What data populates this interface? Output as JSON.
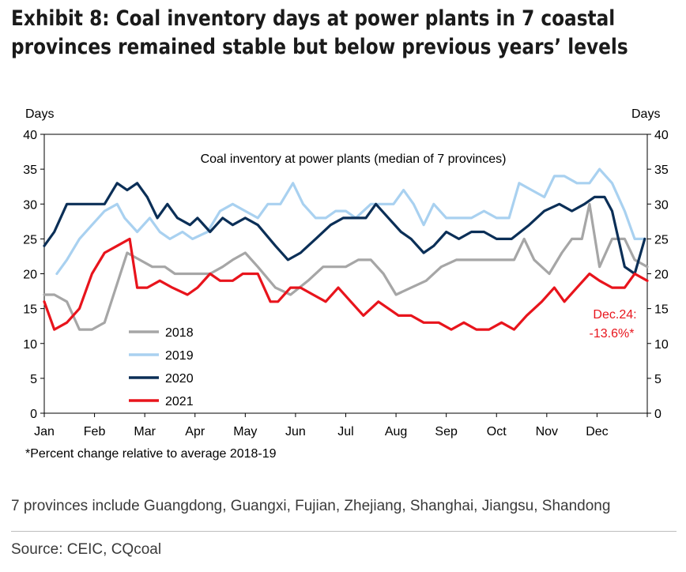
{
  "title": {
    "line1": "Exhibit 8: Coal inventory days at power plants in 7 coastal",
    "line2": "provinces remained stable but below previous years’ levels"
  },
  "chart_data": {
    "type": "line",
    "inner_title": "Coal inventory at power plants (median of 7 provinces)",
    "ylabel_left": "Days",
    "ylabel_right": "Days",
    "ylim": [
      0,
      40
    ],
    "yticks": [
      0,
      5,
      10,
      15,
      20,
      25,
      30,
      35,
      40
    ],
    "x_range": [
      0,
      12
    ],
    "months": [
      "Jan",
      "Feb",
      "Mar",
      "Apr",
      "May",
      "Jun",
      "Jul",
      "Aug",
      "Sep",
      "Oct",
      "Nov",
      "Dec"
    ],
    "footnote": "*Percent change relative to average 2018-19",
    "annotation": {
      "line1": "Dec.24:",
      "line2": "-13.6%*",
      "color": "#e8141c"
    },
    "series": [
      {
        "name": "2018",
        "color": "#a6a6a6",
        "x": [
          0,
          0.2,
          0.45,
          0.7,
          0.95,
          1.2,
          1.65,
          1.9,
          2.15,
          2.4,
          2.6,
          2.9,
          3.3,
          3.55,
          3.75,
          4.0,
          4.25,
          4.6,
          4.9,
          5.25,
          5.55,
          5.8,
          6.0,
          6.25,
          6.5,
          6.75,
          7.0,
          7.3,
          7.6,
          7.9,
          8.2,
          8.55,
          8.9,
          9.35,
          9.55,
          9.75,
          10.05,
          10.3,
          10.5,
          10.7,
          10.85,
          11.05,
          11.3,
          11.55,
          11.75,
          12.0
        ],
        "values": [
          17,
          17,
          16,
          12,
          12,
          13,
          23,
          22,
          21,
          21,
          20,
          20,
          20,
          21,
          22,
          23,
          21,
          18,
          17,
          19,
          21,
          21,
          21,
          22,
          22,
          20,
          17,
          18,
          19,
          21,
          22,
          22,
          22,
          22,
          25,
          22,
          20,
          23,
          25,
          25,
          30,
          21,
          25,
          25,
          22,
          21
        ]
      },
      {
        "name": "2019",
        "color": "#a9d1f0",
        "x": [
          0.25,
          0.45,
          0.7,
          0.95,
          1.2,
          1.45,
          1.6,
          1.85,
          2.1,
          2.3,
          2.5,
          2.75,
          2.95,
          3.25,
          3.5,
          3.75,
          4.0,
          4.25,
          4.45,
          4.7,
          4.95,
          5.15,
          5.4,
          5.6,
          5.8,
          6.0,
          6.2,
          6.5,
          6.75,
          6.95,
          7.15,
          7.35,
          7.55,
          7.75,
          8.0,
          8.2,
          8.5,
          8.75,
          9.0,
          9.25,
          9.45,
          9.7,
          9.95,
          10.15,
          10.35,
          10.6,
          10.85,
          11.05,
          11.3,
          11.55,
          11.75,
          11.95
        ],
        "values": [
          20,
          22,
          25,
          27,
          29,
          30,
          28,
          26,
          28,
          26,
          25,
          26,
          25,
          26,
          29,
          30,
          29,
          28,
          30,
          30,
          33,
          30,
          28,
          28,
          29,
          29,
          28,
          30,
          30,
          30,
          32,
          30,
          27,
          30,
          28,
          28,
          28,
          29,
          28,
          28,
          33,
          32,
          31,
          34,
          34,
          33,
          33,
          35,
          33,
          29,
          25,
          25
        ]
      },
      {
        "name": "2020",
        "color": "#0b2f57",
        "x": [
          0,
          0.2,
          0.45,
          0.7,
          0.95,
          1.2,
          1.45,
          1.65,
          1.85,
          2.05,
          2.25,
          2.45,
          2.65,
          2.9,
          3.05,
          3.3,
          3.55,
          3.75,
          4.0,
          4.25,
          4.6,
          4.85,
          5.1,
          5.4,
          5.7,
          5.95,
          6.2,
          6.4,
          6.6,
          6.85,
          7.1,
          7.3,
          7.55,
          7.75,
          8.0,
          8.25,
          8.5,
          8.75,
          9.0,
          9.3,
          9.65,
          9.95,
          10.25,
          10.5,
          10.75,
          10.95,
          11.15,
          11.3,
          11.55,
          11.75,
          11.95
        ],
        "values": [
          24,
          26,
          30,
          30,
          30,
          30,
          33,
          32,
          33,
          31,
          28,
          30,
          28,
          27,
          28,
          26,
          28,
          27,
          28,
          27,
          24,
          22,
          23,
          25,
          27,
          28,
          28,
          28,
          30,
          28,
          26,
          25,
          23,
          24,
          26,
          25,
          26,
          26,
          25,
          25,
          27,
          29,
          30,
          29,
          30,
          31,
          31,
          29,
          21,
          20,
          25
        ]
      },
      {
        "name": "2021",
        "color": "#e8141c",
        "x": [
          0,
          0.2,
          0.45,
          0.7,
          0.95,
          1.2,
          1.45,
          1.7,
          1.85,
          2.05,
          2.3,
          2.55,
          2.85,
          3.05,
          3.3,
          3.5,
          3.75,
          3.95,
          4.25,
          4.5,
          4.65,
          4.9,
          5.1,
          5.35,
          5.6,
          5.85,
          6.1,
          6.35,
          6.65,
          6.85,
          7.05,
          7.3,
          7.55,
          7.85,
          8.1,
          8.35,
          8.6,
          8.85,
          9.1,
          9.35,
          9.6,
          9.9,
          10.15,
          10.35,
          10.6,
          10.85,
          11.05,
          11.3,
          11.55,
          11.75,
          12.0
        ],
        "values": [
          16,
          12,
          13,
          15,
          20,
          23,
          24,
          25,
          18,
          18,
          19,
          18,
          17,
          18,
          20,
          19,
          19,
          20,
          20,
          16,
          16,
          18,
          18,
          17,
          16,
          18,
          16,
          14,
          16,
          15,
          14,
          14,
          13,
          13,
          12,
          13,
          12,
          12,
          13,
          12,
          14,
          16,
          18,
          16,
          18,
          20,
          19,
          18,
          18,
          20,
          19
        ]
      }
    ]
  },
  "footnote_provinces": "7 provinces include Guangdong, Guangxi, Fujian, Zhejiang, Shanghai, Jiangsu, Shandong",
  "source": "Source: CEIC, CQcoal"
}
